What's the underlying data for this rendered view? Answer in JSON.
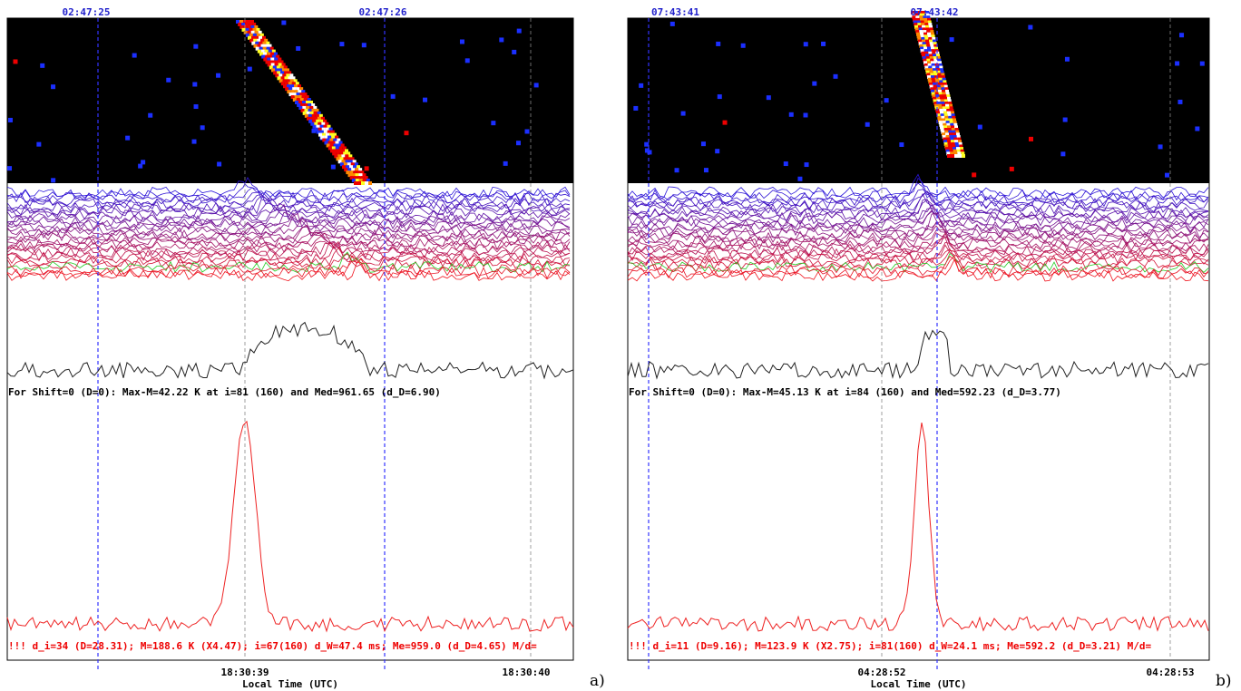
{
  "panels": [
    {
      "top_time_labels": [
        "02:47:25",
        "02:47:26"
      ],
      "info_line": "For Shift=0 (D=0): Max-M=42.22 K at i=81 (160) and Med=961.65 (d_D=6.90)",
      "detection_line": "!!! d_i=34 (D=28.31); M=188.6 K (X4.47); i=67(160) d_W=47.4 ms; Me=959.0 (d_D=4.65) M/d=",
      "bottom_time_labels": [
        "18:30:39",
        "18:30:40"
      ],
      "x_label": "Local Time (UTC)",
      "panel_label": "a)"
    },
    {
      "top_time_labels": [
        "07:43:41",
        "07:43:42"
      ],
      "info_line": "For Shift=0 (D=0): Max-M=45.13 K at i=84 (160) and Med=592.23 (d_D=3.77)",
      "detection_line": "!!! d_i=11 (D=9.16); M=123.9 K (X2.75); i=81(160) d_W=24.1 ms; Me=592.2 (d_D=3.21) M/d=",
      "bottom_time_labels": [
        "04:28:52",
        "04:28:53"
      ],
      "x_label": "Local Time (UTC)",
      "panel_label": "b)"
    }
  ]
}
